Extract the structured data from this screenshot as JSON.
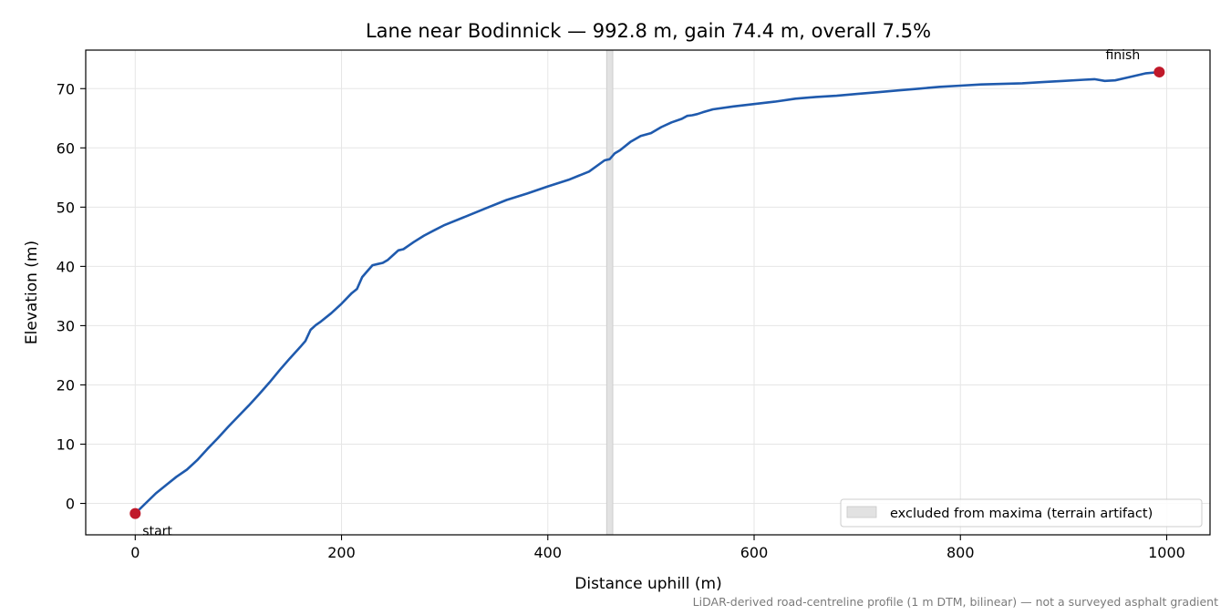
{
  "chart_data": {
    "type": "line",
    "title": "Lane near Bodinnick — 992.8 m, gain 74.4 m, overall 7.5%",
    "xlabel": "Distance uphill (m)",
    "ylabel": "Elevation (m)",
    "xlim": [
      -48,
      1042
    ],
    "ylim": [
      -5.3,
      76.5
    ],
    "xticks": [
      0,
      200,
      400,
      600,
      800,
      1000
    ],
    "xtick_labels": [
      "0",
      "200",
      "400",
      "600",
      "800",
      "1000"
    ],
    "yticks": [
      0,
      10,
      20,
      30,
      40,
      50,
      60,
      70
    ],
    "ytick_labels": [
      "0",
      "10",
      "20",
      "30",
      "40",
      "50",
      "60",
      "70"
    ],
    "grid": true,
    "line_color": "#1f5aad",
    "marker_color": "#c0192a",
    "band_color": "#e2e2e2",
    "series": [
      {
        "x": [
          0,
          10,
          20,
          30,
          40,
          50,
          60,
          70,
          80,
          90,
          100,
          110,
          120,
          130,
          140,
          150,
          160,
          165,
          170,
          175,
          180,
          190,
          200,
          210,
          215,
          220,
          225,
          230,
          235,
          240,
          245,
          250,
          255,
          260,
          265,
          270,
          280,
          290,
          300,
          320,
          340,
          360,
          380,
          400,
          420,
          440,
          455,
          460,
          465,
          470,
          480,
          490,
          500,
          510,
          520,
          530,
          535,
          540,
          545,
          550,
          560,
          580,
          600,
          620,
          640,
          660,
          680,
          700,
          720,
          740,
          760,
          780,
          800,
          820,
          840,
          860,
          880,
          900,
          920,
          930,
          940,
          950,
          960,
          970,
          980,
          992.8
        ],
        "y": [
          -1.7,
          0.0,
          1.7,
          3.1,
          4.5,
          5.7,
          7.3,
          9.2,
          11.0,
          12.9,
          14.7,
          16.5,
          18.4,
          20.4,
          22.5,
          24.5,
          26.4,
          27.4,
          29.3,
          30.1,
          30.7,
          32.1,
          33.7,
          35.5,
          36.2,
          38.2,
          39.2,
          40.2,
          40.4,
          40.6,
          41.1,
          41.9,
          42.7,
          42.9,
          43.5,
          44.1,
          45.2,
          46.1,
          47.0,
          48.4,
          49.8,
          51.2,
          52.3,
          53.5,
          54.6,
          56.0,
          57.9,
          58.1,
          59.1,
          59.6,
          61.0,
          62.0,
          62.5,
          63.5,
          64.3,
          64.9,
          65.4,
          65.5,
          65.7,
          66.0,
          66.5,
          67.0,
          67.4,
          67.8,
          68.3,
          68.6,
          68.8,
          69.1,
          69.4,
          69.7,
          70.0,
          70.3,
          70.5,
          70.7,
          70.8,
          70.9,
          71.1,
          71.3,
          71.5,
          71.6,
          71.3,
          71.4,
          71.8,
          72.2,
          72.6,
          72.8
        ]
      }
    ],
    "excluded_band": {
      "x0": 457,
      "x1": 463
    },
    "start_point": {
      "x": 0,
      "y": -1.7,
      "label": "start"
    },
    "finish_point": {
      "x": 992.8,
      "y": 72.8,
      "label": "finish"
    },
    "legend": {
      "label": "excluded from maxima (terrain artifact)",
      "position": "lower-right"
    },
    "footnote": "LiDAR-derived road-centreline profile (1 m DTM, bilinear) — not a surveyed asphalt gradient"
  }
}
